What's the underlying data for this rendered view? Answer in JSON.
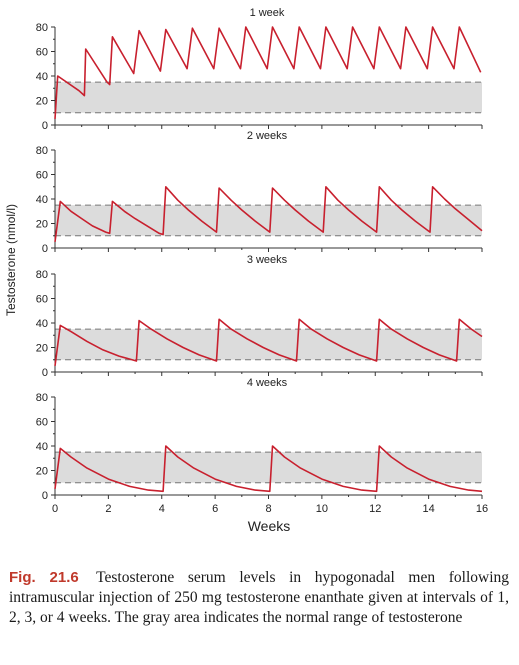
{
  "chart_data": {
    "type": "line",
    "xlabel": "Weeks",
    "ylabel": "Testosterone (nmol/l)",
    "xlim": [
      0,
      16
    ],
    "ylim": [
      0,
      80
    ],
    "x_ticks": [
      0,
      2,
      4,
      6,
      8,
      10,
      12,
      14,
      16
    ],
    "y_ticks": [
      0,
      20,
      40,
      60,
      80
    ],
    "normal_range": [
      10,
      35
    ],
    "series_color": "#c8202e",
    "normal_range_color": "#dcdcdc",
    "panels": [
      {
        "title": "1 week",
        "points": [
          [
            0,
            5
          ],
          [
            0.1,
            40
          ],
          [
            0.9,
            28
          ],
          [
            1.1,
            24
          ],
          [
            1.15,
            62
          ],
          [
            1.95,
            35
          ],
          [
            2.05,
            33
          ],
          [
            2.15,
            72
          ],
          [
            2.95,
            42
          ],
          [
            3.15,
            77
          ],
          [
            3.95,
            44
          ],
          [
            4.15,
            78
          ],
          [
            4.95,
            46
          ],
          [
            5.15,
            79
          ],
          [
            5.95,
            46
          ],
          [
            6.15,
            79
          ],
          [
            6.95,
            46
          ],
          [
            7.15,
            80
          ],
          [
            7.95,
            46
          ],
          [
            8.15,
            80
          ],
          [
            8.95,
            46
          ],
          [
            9.15,
            80
          ],
          [
            9.95,
            46
          ],
          [
            10.15,
            80
          ],
          [
            10.95,
            46
          ],
          [
            11.15,
            80
          ],
          [
            11.95,
            46
          ],
          [
            12.15,
            80
          ],
          [
            12.95,
            46
          ],
          [
            13.15,
            80
          ],
          [
            13.95,
            46
          ],
          [
            14.15,
            80
          ],
          [
            14.95,
            46
          ],
          [
            15.15,
            80
          ],
          [
            15.95,
            43
          ]
        ]
      },
      {
        "title": "2 weeks",
        "points": [
          [
            0,
            5
          ],
          [
            0.2,
            38
          ],
          [
            0.6,
            30
          ],
          [
            1.0,
            24
          ],
          [
            1.4,
            18
          ],
          [
            1.9,
            13
          ],
          [
            2.05,
            12
          ],
          [
            2.15,
            38
          ],
          [
            2.6,
            30
          ],
          [
            3.0,
            24
          ],
          [
            3.9,
            12
          ],
          [
            4.05,
            11
          ],
          [
            4.15,
            50
          ],
          [
            4.6,
            39
          ],
          [
            5.0,
            31
          ],
          [
            5.5,
            22
          ],
          [
            6.05,
            13
          ],
          [
            6.15,
            49
          ],
          [
            6.6,
            39
          ],
          [
            7.0,
            31
          ],
          [
            7.5,
            22
          ],
          [
            8.05,
            13
          ],
          [
            8.15,
            49
          ],
          [
            8.6,
            39
          ],
          [
            9.0,
            31
          ],
          [
            9.5,
            22
          ],
          [
            10.05,
            13
          ],
          [
            10.15,
            50
          ],
          [
            10.6,
            39
          ],
          [
            11.0,
            31
          ],
          [
            11.5,
            22
          ],
          [
            12.05,
            13
          ],
          [
            12.15,
            50
          ],
          [
            12.6,
            39
          ],
          [
            13.0,
            31
          ],
          [
            13.5,
            22
          ],
          [
            14.05,
            13
          ],
          [
            14.15,
            50
          ],
          [
            14.6,
            40
          ],
          [
            15.0,
            32
          ],
          [
            15.5,
            23
          ],
          [
            16.0,
            14
          ]
        ]
      },
      {
        "title": "3 weeks",
        "points": [
          [
            0,
            5
          ],
          [
            0.2,
            38
          ],
          [
            0.6,
            33
          ],
          [
            1.2,
            25
          ],
          [
            1.8,
            18
          ],
          [
            2.4,
            13
          ],
          [
            3.05,
            9
          ],
          [
            3.15,
            42
          ],
          [
            3.6,
            35
          ],
          [
            4.2,
            27
          ],
          [
            4.8,
            20
          ],
          [
            5.4,
            14
          ],
          [
            6.05,
            9
          ],
          [
            6.15,
            43
          ],
          [
            6.6,
            35
          ],
          [
            7.2,
            27
          ],
          [
            7.8,
            20
          ],
          [
            8.4,
            14
          ],
          [
            9.05,
            9
          ],
          [
            9.15,
            43
          ],
          [
            9.6,
            35
          ],
          [
            10.2,
            27
          ],
          [
            10.8,
            20
          ],
          [
            11.4,
            14
          ],
          [
            12.05,
            9
          ],
          [
            12.15,
            43
          ],
          [
            12.6,
            35
          ],
          [
            13.2,
            27
          ],
          [
            13.8,
            20
          ],
          [
            14.4,
            14
          ],
          [
            15.05,
            9
          ],
          [
            15.15,
            43
          ],
          [
            15.6,
            35
          ],
          [
            16.0,
            29
          ]
        ]
      },
      {
        "title": "4 weeks",
        "points": [
          [
            0,
            5
          ],
          [
            0.2,
            38
          ],
          [
            0.6,
            31
          ],
          [
            1.2,
            22
          ],
          [
            2.0,
            13
          ],
          [
            2.8,
            7
          ],
          [
            3.5,
            4
          ],
          [
            4.05,
            3
          ],
          [
            4.15,
            40
          ],
          [
            4.6,
            31
          ],
          [
            5.2,
            22
          ],
          [
            6.0,
            13
          ],
          [
            6.8,
            7
          ],
          [
            7.5,
            4
          ],
          [
            8.05,
            3
          ],
          [
            8.15,
            40
          ],
          [
            8.6,
            31
          ],
          [
            9.2,
            22
          ],
          [
            10.0,
            13
          ],
          [
            10.8,
            7
          ],
          [
            11.5,
            4
          ],
          [
            12.05,
            3
          ],
          [
            12.15,
            40
          ],
          [
            12.6,
            31
          ],
          [
            13.2,
            22
          ],
          [
            14.0,
            13
          ],
          [
            14.8,
            7
          ],
          [
            15.5,
            4
          ],
          [
            16.0,
            3
          ]
        ]
      }
    ]
  },
  "caption": {
    "label": "Fig. 21.6",
    "text": "Testosterone serum levels in hypogonadal men following intramuscular injection of 250 mg testosterone enanthate given at intervals of 1, 2, 3, or 4 weeks. The gray area indicates the normal range of testosterone"
  }
}
